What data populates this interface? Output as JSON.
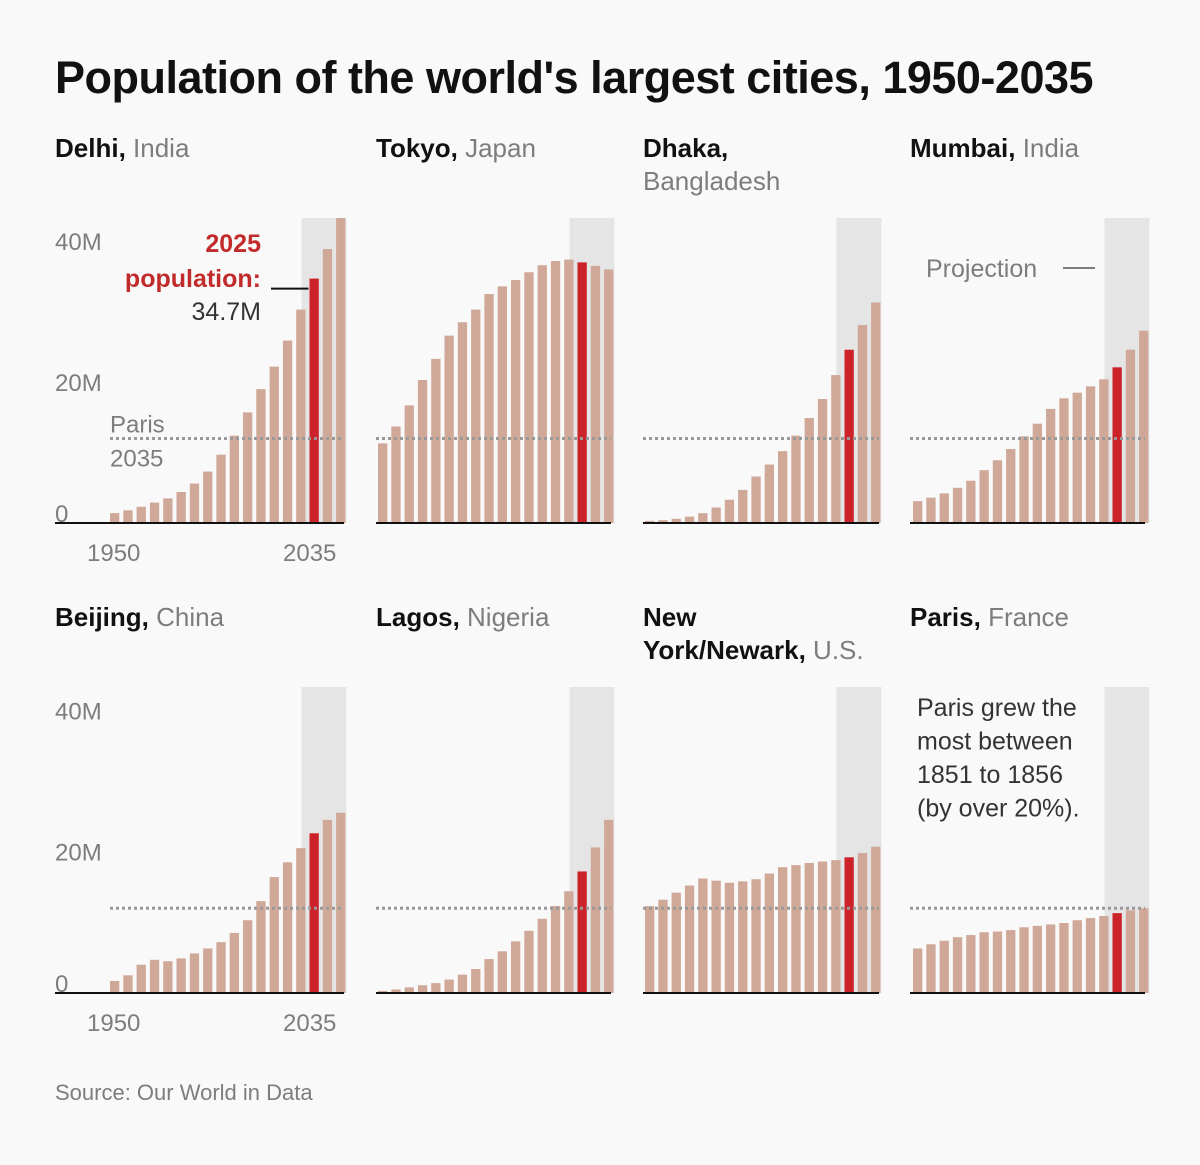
{
  "title": "Population of the world's largest cities, 1950-2035",
  "source": "Source: Our World in Data",
  "colors": {
    "bar": "#cfa898",
    "highlight": "#cc2229",
    "projection_band": "#e5e5e5",
    "reference_line": "#999999",
    "axis": "#111111",
    "label": "#7d7d7d",
    "annotation_red": "#c22b2b"
  },
  "chart_data": [
    {
      "type": "bar",
      "city": "Delhi",
      "country": "India",
      "x": [
        1950,
        1955,
        1960,
        1965,
        1970,
        1975,
        1980,
        1985,
        1990,
        1995,
        2000,
        2005,
        2010,
        2015,
        2020,
        2025,
        2030,
        2035
      ],
      "values": [
        1.4,
        1.8,
        2.3,
        2.9,
        3.5,
        4.4,
        5.6,
        7.3,
        9.7,
        12.4,
        15.7,
        19.0,
        22.2,
        25.9,
        30.3,
        34.7,
        38.9,
        43.3
      ],
      "highlight_x": 2025,
      "projection_from": 2025,
      "ylim": [
        0,
        43.3
      ],
      "yticks": [
        "40M",
        "20M",
        "0"
      ],
      "xticks": [
        "1950",
        "2035"
      ],
      "reference": {
        "value": 12.0,
        "label": [
          "Paris",
          "2035"
        ]
      },
      "annotation": {
        "title": [
          "2025",
          "population:"
        ],
        "value": "34.7M"
      }
    },
    {
      "type": "bar",
      "city": "Tokyo",
      "country": "Japan",
      "x": [
        1950,
        1955,
        1960,
        1965,
        1970,
        1975,
        1980,
        1985,
        1990,
        1995,
        2000,
        2005,
        2010,
        2015,
        2020,
        2025,
        2030,
        2035
      ],
      "values": [
        11.3,
        13.7,
        16.7,
        20.3,
        23.3,
        26.6,
        28.5,
        30.3,
        32.5,
        33.6,
        34.5,
        35.6,
        36.6,
        37.2,
        37.4,
        37.0,
        36.5,
        36.0
      ],
      "highlight_x": 2025,
      "projection_from": 2025,
      "ylim": [
        0,
        43.3
      ]
    },
    {
      "type": "bar",
      "city": "Dhaka",
      "country": "Bangladesh",
      "x": [
        1950,
        1955,
        1960,
        1965,
        1970,
        1975,
        1980,
        1985,
        1990,
        1995,
        2000,
        2005,
        2010,
        2015,
        2020,
        2025,
        2030,
        2035
      ],
      "values": [
        0.3,
        0.4,
        0.6,
        0.9,
        1.4,
        2.2,
        3.3,
        4.7,
        6.6,
        8.3,
        10.2,
        12.4,
        14.9,
        17.6,
        21.0,
        24.6,
        28.1,
        31.3
      ],
      "highlight_x": 2025,
      "projection_from": 2025,
      "ylim": [
        0,
        43.3
      ]
    },
    {
      "type": "bar",
      "city": "Mumbai",
      "country": "India",
      "x": [
        1950,
        1955,
        1960,
        1965,
        1970,
        1975,
        1980,
        1985,
        1990,
        1995,
        2000,
        2005,
        2010,
        2015,
        2020,
        2025,
        2030,
        2035
      ],
      "values": [
        3.1,
        3.6,
        4.2,
        5.0,
        6.0,
        7.5,
        8.9,
        10.5,
        12.3,
        14.1,
        16.2,
        17.7,
        18.5,
        19.4,
        20.4,
        22.1,
        24.6,
        27.3
      ],
      "highlight_x": 2025,
      "projection_from": 2025,
      "ylim": [
        0,
        43.3
      ],
      "projection_label": "Projection"
    },
    {
      "type": "bar",
      "city": "Beijing",
      "country": "China",
      "x": [
        1950,
        1955,
        1960,
        1965,
        1970,
        1975,
        1980,
        1985,
        1990,
        1995,
        2000,
        2005,
        2010,
        2015,
        2020,
        2025,
        2030,
        2035
      ],
      "values": [
        1.7,
        2.5,
        4.0,
        4.7,
        4.5,
        4.9,
        5.6,
        6.3,
        7.2,
        8.5,
        10.3,
        13.0,
        16.4,
        18.5,
        20.5,
        22.6,
        24.5,
        25.5
      ],
      "highlight_x": 2025,
      "projection_from": 2025,
      "ylim": [
        0,
        43.3
      ],
      "yticks": [
        "40M",
        "20M",
        "0"
      ],
      "xticks": [
        "1950",
        "2035"
      ]
    },
    {
      "type": "bar",
      "city": "Lagos",
      "country": "Nigeria",
      "x": [
        1950,
        1955,
        1960,
        1965,
        1970,
        1975,
        1980,
        1985,
        1990,
        1995,
        2000,
        2005,
        2010,
        2015,
        2020,
        2025,
        2030,
        2035
      ],
      "values": [
        0.3,
        0.5,
        0.8,
        1.1,
        1.4,
        1.9,
        2.6,
        3.4,
        4.8,
        5.9,
        7.3,
        8.8,
        10.5,
        12.3,
        14.4,
        17.2,
        20.6,
        24.5
      ],
      "highlight_x": 2025,
      "projection_from": 2025,
      "ylim": [
        0,
        43.3
      ]
    },
    {
      "type": "bar",
      "city": "New York/Newark",
      "city_lines": [
        "New",
        "York/Newark,"
      ],
      "country": "U.S.",
      "x": [
        1950,
        1955,
        1960,
        1965,
        1970,
        1975,
        1980,
        1985,
        1990,
        1995,
        2000,
        2005,
        2010,
        2015,
        2020,
        2025,
        2030,
        2035
      ],
      "values": [
        12.3,
        13.2,
        14.2,
        15.2,
        16.2,
        15.9,
        15.6,
        15.8,
        16.1,
        16.9,
        17.8,
        18.1,
        18.4,
        18.6,
        18.8,
        19.2,
        19.8,
        20.7
      ],
      "highlight_x": 2025,
      "projection_from": 2025,
      "ylim": [
        0,
        43.3
      ]
    },
    {
      "type": "bar",
      "city": "Paris",
      "country": "France",
      "x": [
        1950,
        1955,
        1960,
        1965,
        1970,
        1975,
        1980,
        1985,
        1990,
        1995,
        2000,
        2005,
        2010,
        2015,
        2020,
        2025,
        2030,
        2035
      ],
      "values": [
        6.3,
        6.9,
        7.4,
        7.9,
        8.2,
        8.6,
        8.7,
        8.9,
        9.3,
        9.5,
        9.7,
        9.9,
        10.3,
        10.6,
        10.9,
        11.3,
        11.7,
        12.0
      ],
      "highlight_x": 2025,
      "projection_from": 2025,
      "ylim": [
        0,
        43.3
      ],
      "note": [
        "Paris grew the",
        "most between",
        "1851 to 1856",
        "(by over 20%)."
      ]
    }
  ]
}
